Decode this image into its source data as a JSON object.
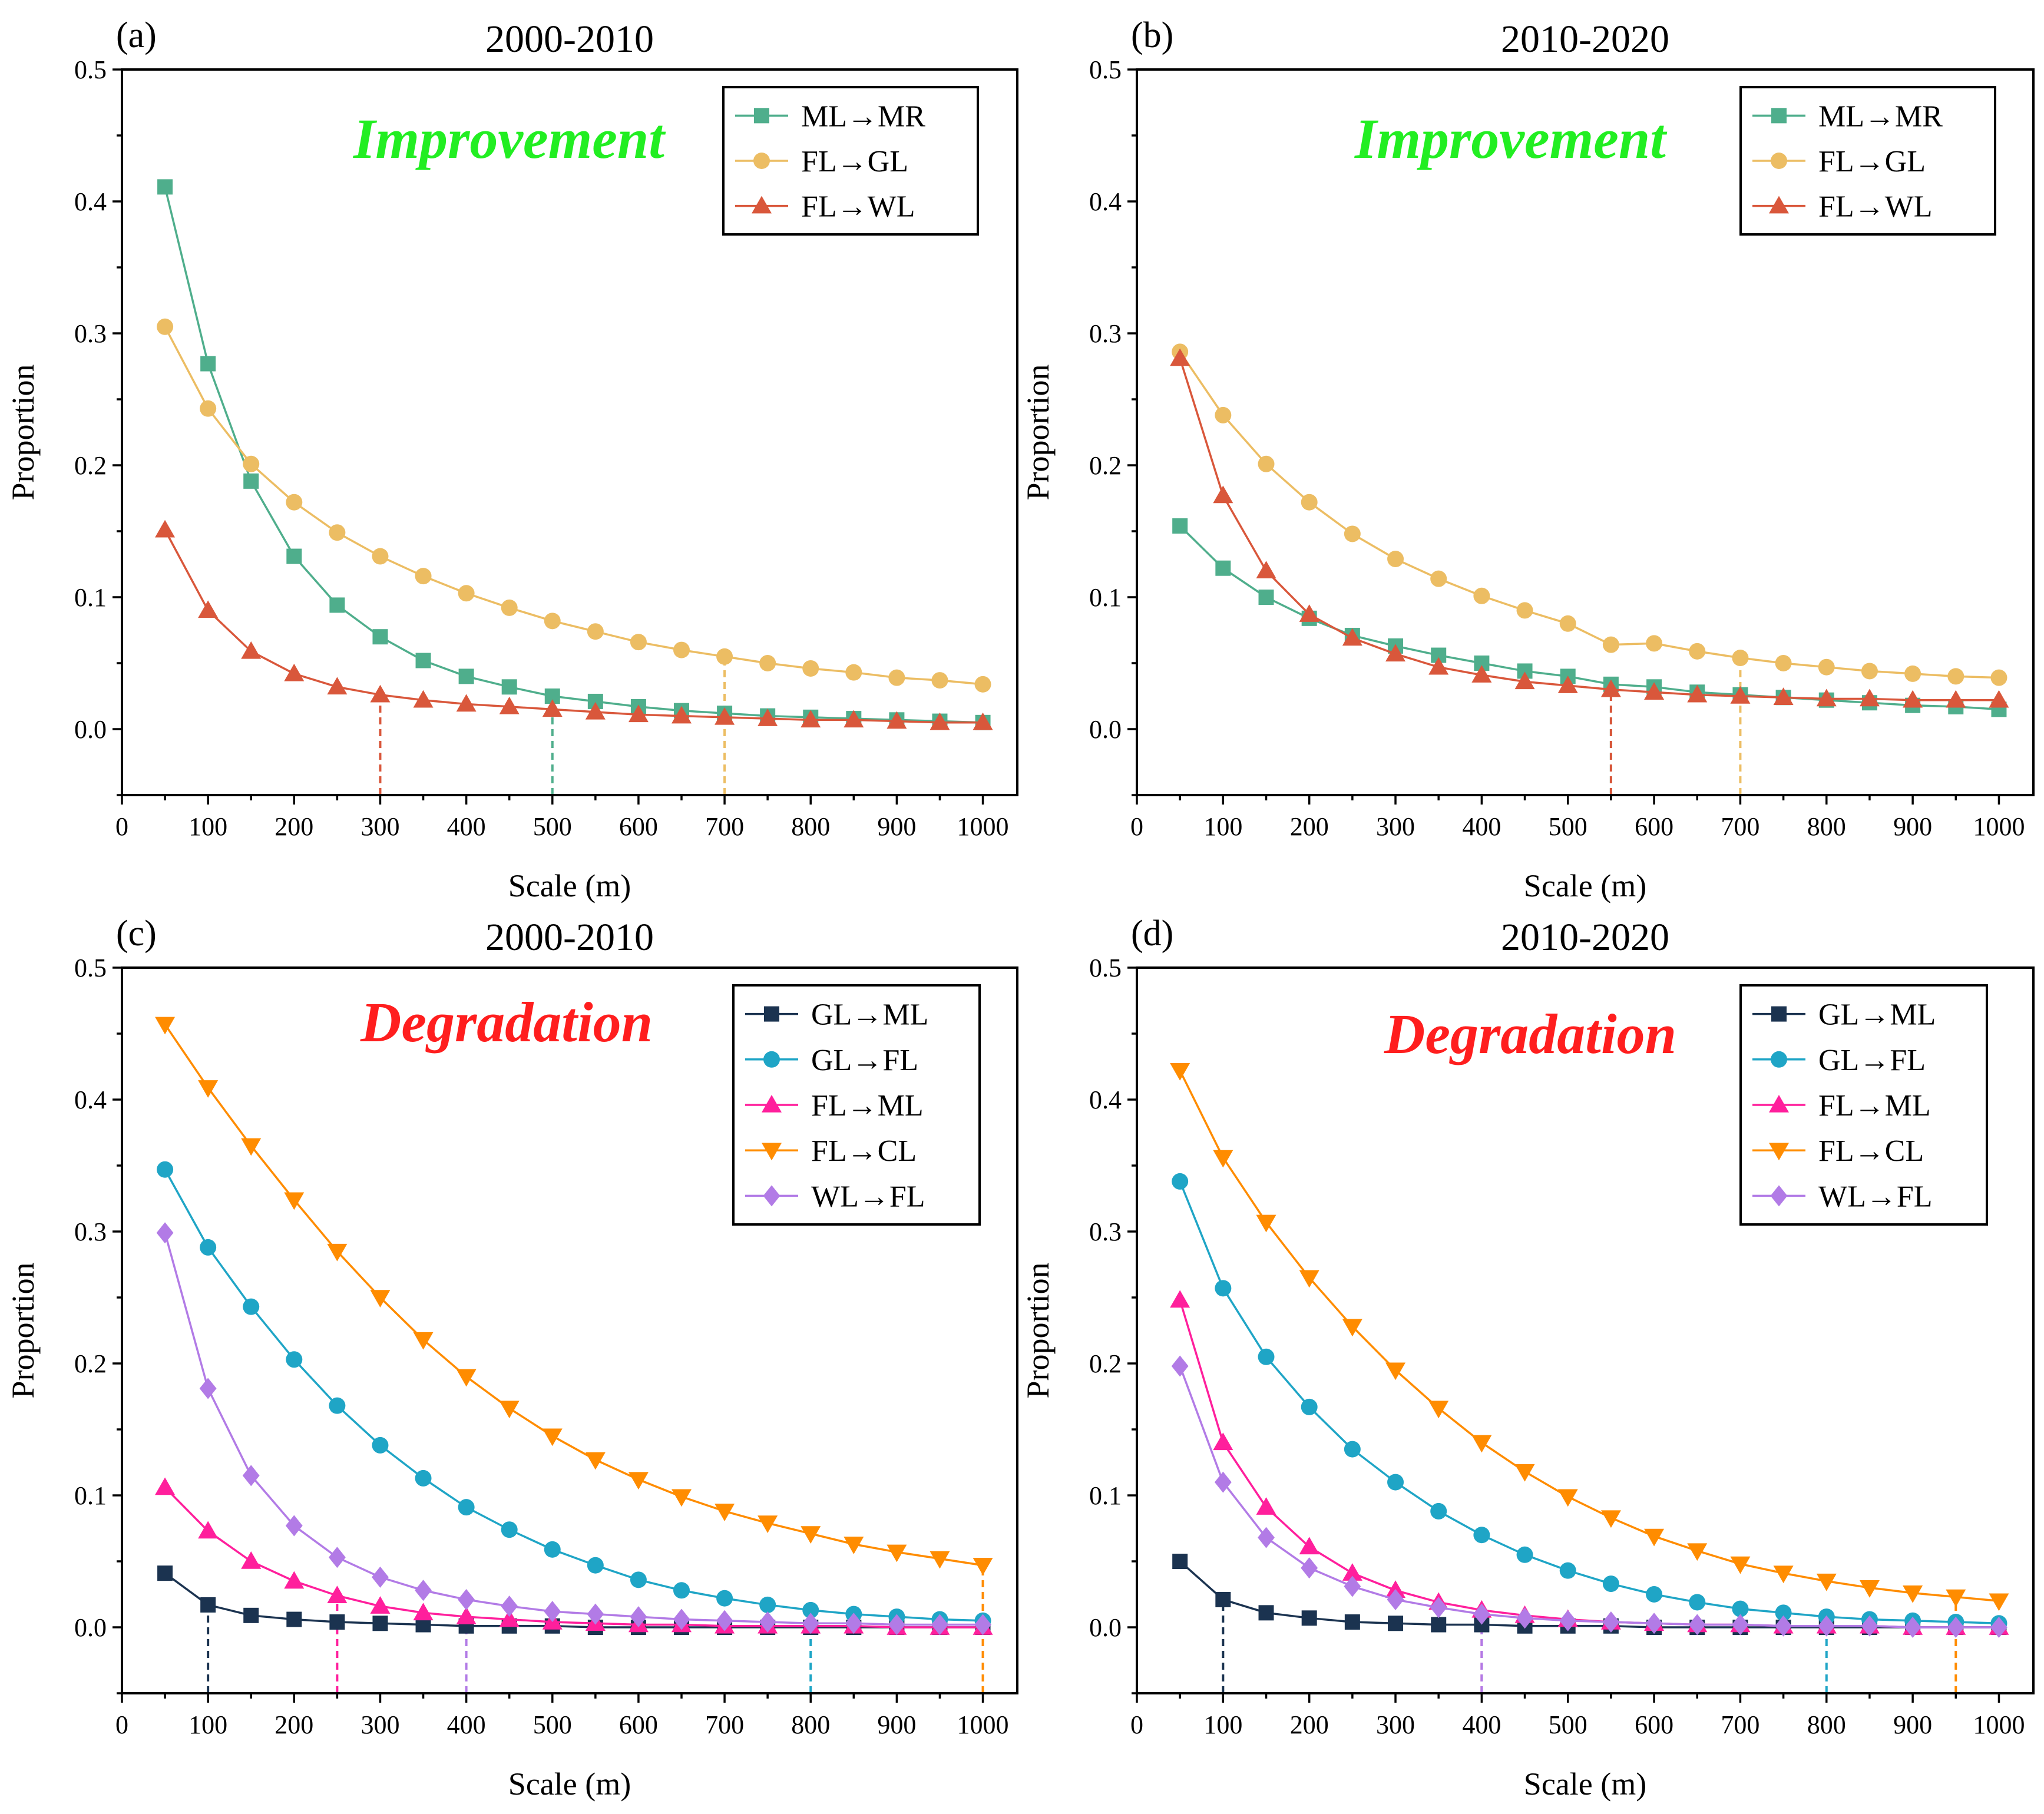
{
  "chart_data": [
    {
      "id": "a",
      "type": "line",
      "letter": "(a)",
      "title": "2000-2010",
      "annotation": {
        "text": "Improvement",
        "color": "#22ee22"
      },
      "xlabel": "Scale (m)",
      "ylabel": "Proportion",
      "xlim": [
        0,
        1040
      ],
      "ylim": [
        -0.05,
        0.5
      ],
      "xticks": [
        0,
        100,
        200,
        300,
        400,
        500,
        600,
        700,
        800,
        900,
        1000
      ],
      "yticks": [
        0.0,
        0.1,
        0.2,
        0.3,
        0.4,
        0.5
      ],
      "ytick_labels": [
        "0.0",
        "0.1",
        "0.2",
        "0.3",
        "0.4",
        "0.5"
      ],
      "x": [
        50,
        100,
        150,
        200,
        250,
        300,
        350,
        400,
        450,
        500,
        550,
        600,
        650,
        700,
        750,
        800,
        850,
        900,
        950,
        1000
      ],
      "series": [
        {
          "name": "ML→MR",
          "color": "#4fae8c",
          "marker": "square",
          "threshold": 500,
          "values": [
            0.411,
            0.277,
            0.188,
            0.131,
            0.094,
            0.07,
            0.052,
            0.04,
            0.032,
            0.025,
            0.021,
            0.017,
            0.014,
            0.012,
            0.01,
            0.009,
            0.008,
            0.007,
            0.006,
            0.005
          ]
        },
        {
          "name": "FL→GL",
          "color": "#ecbd63",
          "marker": "circle",
          "threshold": 700,
          "values": [
            0.305,
            0.243,
            0.201,
            0.172,
            0.149,
            0.131,
            0.116,
            0.103,
            0.092,
            0.082,
            0.074,
            0.066,
            0.06,
            0.055,
            0.05,
            0.046,
            0.043,
            0.039,
            0.037,
            0.034
          ]
        },
        {
          "name": "FL→WL",
          "color": "#d9573b",
          "marker": "triangle-up",
          "threshold": 300,
          "values": [
            0.151,
            0.09,
            0.059,
            0.042,
            0.032,
            0.026,
            0.022,
            0.019,
            0.017,
            0.015,
            0.013,
            0.011,
            0.01,
            0.009,
            0.008,
            0.007,
            0.007,
            0.006,
            0.005,
            0.005
          ]
        }
      ]
    },
    {
      "id": "b",
      "type": "line",
      "letter": "(b)",
      "title": "2010-2020",
      "annotation": {
        "text": "Improvement",
        "color": "#22ee22"
      },
      "xlabel": "Scale (m)",
      "ylabel": "Proportion",
      "xlim": [
        0,
        1040
      ],
      "ylim": [
        -0.05,
        0.5
      ],
      "xticks": [
        0,
        100,
        200,
        300,
        400,
        500,
        600,
        700,
        800,
        900,
        1000
      ],
      "yticks": [
        0.0,
        0.1,
        0.2,
        0.3,
        0.4,
        0.5
      ],
      "ytick_labels": [
        "0.0",
        "0.1",
        "0.2",
        "0.3",
        "0.4",
        "0.5"
      ],
      "x": [
        50,
        100,
        150,
        200,
        250,
        300,
        350,
        400,
        450,
        500,
        550,
        600,
        650,
        700,
        750,
        800,
        850,
        900,
        950,
        1000
      ],
      "series": [
        {
          "name": "ML→MR",
          "color": "#4fae8c",
          "marker": "square",
          "threshold": 550,
          "values": [
            0.154,
            0.122,
            0.1,
            0.084,
            0.071,
            0.063,
            0.056,
            0.05,
            0.044,
            0.04,
            0.034,
            0.032,
            0.028,
            0.026,
            0.024,
            0.022,
            0.02,
            0.018,
            0.017,
            0.015
          ]
        },
        {
          "name": "FL→GL",
          "color": "#ecbd63",
          "marker": "circle",
          "threshold": 700,
          "values": [
            0.286,
            0.238,
            0.201,
            0.172,
            0.148,
            0.129,
            0.114,
            0.101,
            0.09,
            0.08,
            0.064,
            0.065,
            0.059,
            0.054,
            0.05,
            0.047,
            0.044,
            0.042,
            0.04,
            0.039
          ]
        },
        {
          "name": "FL→WL",
          "color": "#d9573b",
          "marker": "triangle-up",
          "threshold": 550,
          "values": [
            0.281,
            0.177,
            0.12,
            0.087,
            0.069,
            0.057,
            0.047,
            0.041,
            0.036,
            0.033,
            0.03,
            0.028,
            0.026,
            0.025,
            0.024,
            0.023,
            0.023,
            0.022,
            0.022,
            0.022
          ]
        }
      ]
    },
    {
      "id": "c",
      "type": "line",
      "letter": "(c)",
      "title": "2000-2010",
      "annotation": {
        "text": "Degradation",
        "color": "#ff1e1e"
      },
      "xlabel": "Scale (m)",
      "ylabel": "Proportion",
      "xlim": [
        0,
        1040
      ],
      "ylim": [
        -0.05,
        0.5
      ],
      "xticks": [
        0,
        100,
        200,
        300,
        400,
        500,
        600,
        700,
        800,
        900,
        1000
      ],
      "yticks": [
        0.0,
        0.1,
        0.2,
        0.3,
        0.4,
        0.5
      ],
      "ytick_labels": [
        "0.0",
        "0.1",
        "0.2",
        "0.3",
        "0.4",
        "0.5"
      ],
      "x": [
        50,
        100,
        150,
        200,
        250,
        300,
        350,
        400,
        450,
        500,
        550,
        600,
        650,
        700,
        750,
        800,
        850,
        900,
        950,
        1000
      ],
      "series": [
        {
          "name": "GL→ML",
          "color": "#1b3350",
          "marker": "square",
          "threshold": 100,
          "values": [
            0.041,
            0.017,
            0.009,
            0.006,
            0.004,
            0.003,
            0.002,
            0.001,
            0.001,
            0.001,
            0.0,
            0.0,
            0.0,
            0.0,
            0.0,
            0.0,
            0.0,
            0.0,
            0.0,
            0.0
          ]
        },
        {
          "name": "GL→FL",
          "color": "#1fa5c6",
          "marker": "circle",
          "threshold": 800,
          "values": [
            0.347,
            0.288,
            0.243,
            0.203,
            0.168,
            0.138,
            0.113,
            0.091,
            0.074,
            0.059,
            0.047,
            0.036,
            0.028,
            0.022,
            0.017,
            0.013,
            0.01,
            0.008,
            0.006,
            0.005
          ]
        },
        {
          "name": "FL→ML",
          "color": "#ff1f9c",
          "marker": "triangle-up",
          "threshold": 250,
          "values": [
            0.106,
            0.073,
            0.05,
            0.035,
            0.024,
            0.016,
            0.011,
            0.008,
            0.006,
            0.004,
            0.003,
            0.002,
            0.002,
            0.001,
            0.001,
            0.001,
            0.001,
            0.0,
            0.0,
            0.0
          ]
        },
        {
          "name": "FL→CL",
          "color": "#ff8c00",
          "marker": "triangle-down",
          "threshold": 1000,
          "values": [
            0.457,
            0.409,
            0.365,
            0.324,
            0.285,
            0.25,
            0.218,
            0.19,
            0.166,
            0.145,
            0.127,
            0.112,
            0.099,
            0.088,
            0.079,
            0.071,
            0.063,
            0.057,
            0.052,
            0.047
          ]
        },
        {
          "name": "WL→FL",
          "color": "#b27be6",
          "marker": "diamond",
          "threshold": 400,
          "values": [
            0.299,
            0.181,
            0.115,
            0.077,
            0.053,
            0.038,
            0.028,
            0.021,
            0.016,
            0.012,
            0.01,
            0.008,
            0.006,
            0.005,
            0.004,
            0.003,
            0.003,
            0.002,
            0.002,
            0.002
          ]
        }
      ]
    },
    {
      "id": "d",
      "type": "line",
      "letter": "(d)",
      "title": "2010-2020",
      "annotation": {
        "text": "Degradation",
        "color": "#ff1e1e"
      },
      "xlabel": "Scale (m)",
      "ylabel": "Proportion",
      "xlim": [
        0,
        1040
      ],
      "ylim": [
        -0.05,
        0.5
      ],
      "xticks": [
        0,
        100,
        200,
        300,
        400,
        500,
        600,
        700,
        800,
        900,
        1000
      ],
      "yticks": [
        0.0,
        0.1,
        0.2,
        0.3,
        0.4,
        0.5
      ],
      "ytick_labels": [
        "0.0",
        "0.1",
        "0.2",
        "0.3",
        "0.4",
        "0.5"
      ],
      "x": [
        50,
        100,
        150,
        200,
        250,
        300,
        350,
        400,
        450,
        500,
        550,
        600,
        650,
        700,
        750,
        800,
        850,
        900,
        950,
        1000
      ],
      "series": [
        {
          "name": "GL→ML",
          "color": "#1b3350",
          "marker": "square",
          "threshold": 100,
          "values": [
            0.05,
            0.021,
            0.011,
            0.007,
            0.004,
            0.003,
            0.002,
            0.002,
            0.001,
            0.001,
            0.001,
            0.0,
            0.0,
            0.0,
            0.0,
            0.0,
            0.0,
            0.0,
            0.0,
            0.0
          ]
        },
        {
          "name": "GL→FL",
          "color": "#1fa5c6",
          "marker": "circle",
          "threshold": 800,
          "values": [
            0.338,
            0.257,
            0.205,
            0.167,
            0.135,
            0.11,
            0.088,
            0.07,
            0.055,
            0.043,
            0.033,
            0.025,
            0.019,
            0.014,
            0.011,
            0.008,
            0.006,
            0.005,
            0.004,
            0.003
          ]
        },
        {
          "name": "FL→ML",
          "color": "#ff1f9c",
          "marker": "triangle-up",
          "threshold": 400,
          "values": [
            0.248,
            0.14,
            0.091,
            0.061,
            0.041,
            0.028,
            0.019,
            0.013,
            0.009,
            0.006,
            0.004,
            0.003,
            0.002,
            0.002,
            0.001,
            0.001,
            0.001,
            0.0,
            0.0,
            0.0
          ]
        },
        {
          "name": "FL→CL",
          "color": "#ff8c00",
          "marker": "triangle-down",
          "threshold": 950,
          "values": [
            0.422,
            0.356,
            0.307,
            0.265,
            0.228,
            0.195,
            0.166,
            0.14,
            0.118,
            0.099,
            0.083,
            0.069,
            0.058,
            0.048,
            0.041,
            0.035,
            0.03,
            0.026,
            0.023,
            0.02
          ]
        },
        {
          "name": "WL→FL",
          "color": "#b27be6",
          "marker": "diamond",
          "threshold": 400,
          "values": [
            0.198,
            0.11,
            0.068,
            0.045,
            0.031,
            0.021,
            0.015,
            0.01,
            0.007,
            0.005,
            0.004,
            0.003,
            0.002,
            0.002,
            0.001,
            0.001,
            0.001,
            0.0,
            0.0,
            0.0
          ]
        }
      ]
    }
  ]
}
